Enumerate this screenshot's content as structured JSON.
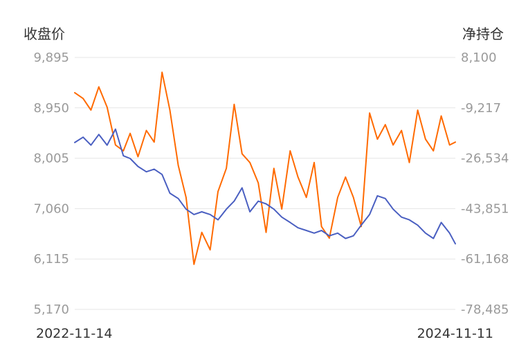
{
  "colors": {
    "close": "#4a5fc1",
    "net_position": "#ff6a00",
    "grid": "#e6e6e6"
  },
  "chart_data": {
    "type": "line",
    "left_axis_title": "收盘价",
    "right_axis_title": "净持仓",
    "left_ticks": [
      "9,895",
      "8,950",
      "8,005",
      "7,060",
      "6,115",
      "5,170"
    ],
    "right_ticks": [
      "8,100",
      "-9,217",
      "-26,534",
      "-43,851",
      "-61,168",
      "-78,485"
    ],
    "x_labels": [
      "2022-11-14",
      "2024-11-11"
    ],
    "x_range": [
      "2022-11-14",
      "2024-11-11"
    ],
    "ylim_left": [
      5170,
      9895
    ],
    "ylim_right": [
      -78485,
      8100
    ],
    "grid": "horizontal",
    "series": [
      {
        "key": "close",
        "axis": "left",
        "x": [
          "2022-11-14",
          "2022-11-30",
          "2022-12-15",
          "2022-12-30",
          "2023-01-15",
          "2023-01-31",
          "2023-02-15",
          "2023-02-28",
          "2023-03-15",
          "2023-03-31",
          "2023-04-15",
          "2023-04-30",
          "2023-05-15",
          "2023-05-31",
          "2023-06-15",
          "2023-06-30",
          "2023-07-15",
          "2023-07-31",
          "2023-08-15",
          "2023-08-31",
          "2023-09-15",
          "2023-09-30",
          "2023-10-15",
          "2023-10-31",
          "2023-11-15",
          "2023-11-30",
          "2023-12-15",
          "2023-12-31",
          "2024-01-15",
          "2024-01-31",
          "2024-02-15",
          "2024-02-29",
          "2024-03-15",
          "2024-03-31",
          "2024-04-15",
          "2024-04-30",
          "2024-05-15",
          "2024-05-31",
          "2024-06-15",
          "2024-06-30",
          "2024-07-15",
          "2024-07-31",
          "2024-08-15",
          "2024-08-31",
          "2024-09-15",
          "2024-09-30",
          "2024-10-15",
          "2024-10-31",
          "2024-11-11"
        ],
        "values": [
          8300,
          8400,
          8250,
          8450,
          8250,
          8550,
          8050,
          8000,
          7850,
          7750,
          7800,
          7700,
          7350,
          7250,
          7050,
          6950,
          7000,
          6950,
          6850,
          7050,
          7200,
          7450,
          7000,
          7200,
          7150,
          7050,
          6900,
          6800,
          6700,
          6650,
          6600,
          6650,
          6550,
          6600,
          6500,
          6550,
          6750,
          6950,
          7300,
          7250,
          7050,
          6900,
          6850,
          6750,
          6600,
          6500,
          6800,
          6600,
          6400
        ]
      },
      {
        "key": "net_position",
        "axis": "right",
        "x": [
          "2022-11-14",
          "2022-11-30",
          "2022-12-15",
          "2022-12-30",
          "2023-01-15",
          "2023-01-31",
          "2023-02-15",
          "2023-02-28",
          "2023-03-15",
          "2023-03-31",
          "2023-04-15",
          "2023-04-30",
          "2023-05-15",
          "2023-05-31",
          "2023-06-15",
          "2023-06-30",
          "2023-07-15",
          "2023-07-31",
          "2023-08-15",
          "2023-08-31",
          "2023-09-15",
          "2023-09-30",
          "2023-10-15",
          "2023-10-31",
          "2023-11-15",
          "2023-11-30",
          "2023-12-15",
          "2023-12-31",
          "2024-01-15",
          "2024-01-31",
          "2024-02-15",
          "2024-02-29",
          "2024-03-15",
          "2024-03-31",
          "2024-04-15",
          "2024-04-30",
          "2024-05-15",
          "2024-05-31",
          "2024-06-15",
          "2024-06-30",
          "2024-07-15",
          "2024-07-31",
          "2024-08-15",
          "2024-08-31",
          "2024-09-15",
          "2024-09-30",
          "2024-10-15",
          "2024-10-31",
          "2024-11-11"
        ],
        "values": [
          -4000,
          -6000,
          -10000,
          -2000,
          -9000,
          -22000,
          -24000,
          -18000,
          -26000,
          -17000,
          -21000,
          3000,
          -10000,
          -29000,
          -40000,
          -63000,
          -52000,
          -58000,
          -38000,
          -30000,
          -8000,
          -25000,
          -28000,
          -35000,
          -52000,
          -30000,
          -44000,
          -24000,
          -33000,
          -40000,
          -28000,
          -50000,
          -54000,
          -40000,
          -33000,
          -40000,
          -50000,
          -11000,
          -20000,
          -15000,
          -22000,
          -17000,
          -28000,
          -10000,
          -20000,
          -24000,
          -12000,
          -22000,
          -21000
        ]
      }
    ]
  }
}
